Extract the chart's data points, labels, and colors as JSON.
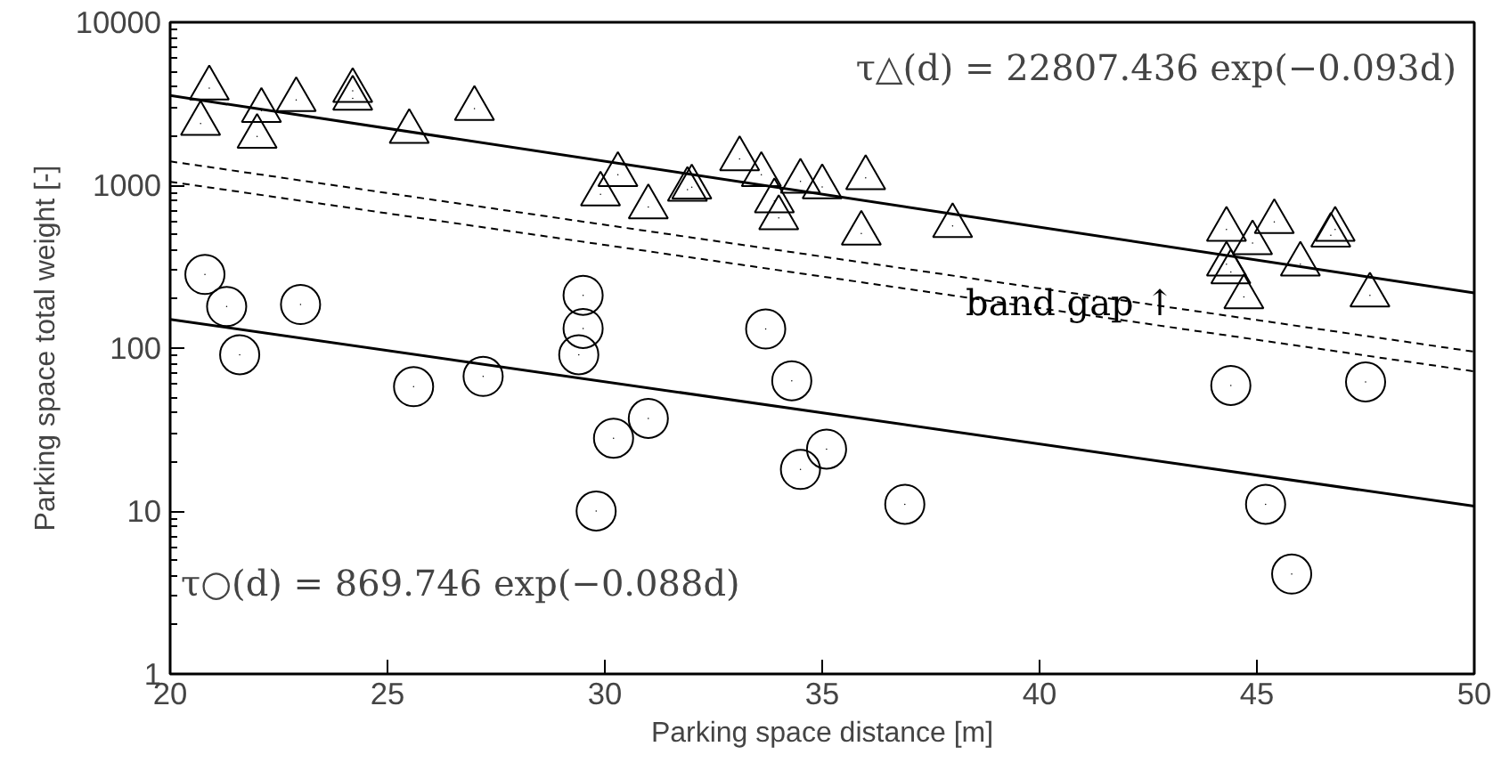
{
  "chart_data": {
    "type": "scatter",
    "xlabel": "Parking space distance [m]",
    "ylabel": "Parking space total weight [-]",
    "log": "y",
    "grid": false,
    "xlim": [
      20,
      50
    ],
    "xticks": [
      20,
      25,
      30,
      35,
      40,
      45,
      50
    ],
    "ylim": [
      1,
      10000
    ],
    "yticks": [
      1,
      10,
      100,
      1000,
      10000
    ],
    "series": [
      {
        "marker": "triangle",
        "color": "#000000",
        "x": [
          20.9,
          20.7,
          22.1,
          22.0,
          22.9,
          24.2,
          24.2,
          25.5,
          27.0,
          29.9,
          30.3,
          31.0,
          31.9,
          32.0,
          33.1,
          33.6,
          33.9,
          34.0,
          34.5,
          35.0,
          36.0,
          35.9,
          38.0,
          44.3,
          44.9,
          45.4,
          44.3,
          44.4,
          44.7,
          46.0,
          46.7,
          46.8,
          47.6
        ],
        "values": [
          3940,
          2390,
          2870,
          1990,
          3340,
          3800,
          3410,
          2130,
          2950,
          880,
          1160,
          735,
          940,
          973,
          1450,
          1160,
          800,
          630,
          1055,
          975,
          1110,
          506,
          563,
          535,
          442,
          596,
          327,
          293,
          206,
          327,
          492,
          535,
          211
        ]
      },
      {
        "marker": "circle",
        "color": "#000000",
        "x": [
          20.8,
          21.3,
          21.6,
          23.0,
          25.6,
          27.2,
          29.5,
          29.5,
          29.4,
          29.8,
          30.2,
          31.0,
          33.7,
          34.3,
          34.5,
          35.1,
          36.9,
          44.4,
          45.2,
          45.8,
          47.5
        ],
        "values": [
          283,
          180,
          91,
          185,
          58,
          67,
          211,
          132,
          91,
          10,
          28,
          37,
          131,
          63,
          18,
          24,
          11,
          59,
          11,
          4.1,
          62
        ]
      },
      {
        "type": "line",
        "line_style": "solid",
        "color": "#000000",
        "x": [
          20,
          50
        ],
        "values": [
          3550,
          218
        ]
      },
      {
        "type": "line",
        "line_style": "solid",
        "color": "#000000",
        "x": [
          20,
          50
        ],
        "values": [
          150,
          10.7
        ]
      },
      {
        "type": "line",
        "line_style": "dashed",
        "color": "#000000",
        "x": [
          20,
          50
        ],
        "values": [
          1400,
          95
        ]
      },
      {
        "type": "line",
        "line_style": "dashed",
        "color": "#000000",
        "x": [
          20,
          50
        ],
        "values": [
          1050,
          72
        ]
      }
    ],
    "annotations": [
      "τ△(d) = 22807.436 exp(−0.093d)",
      {
        "text": "band gap ↑",
        "x": 38.3,
        "y": 190
      },
      "τ○(d) = 869.746 exp(−0.088d)"
    ]
  }
}
